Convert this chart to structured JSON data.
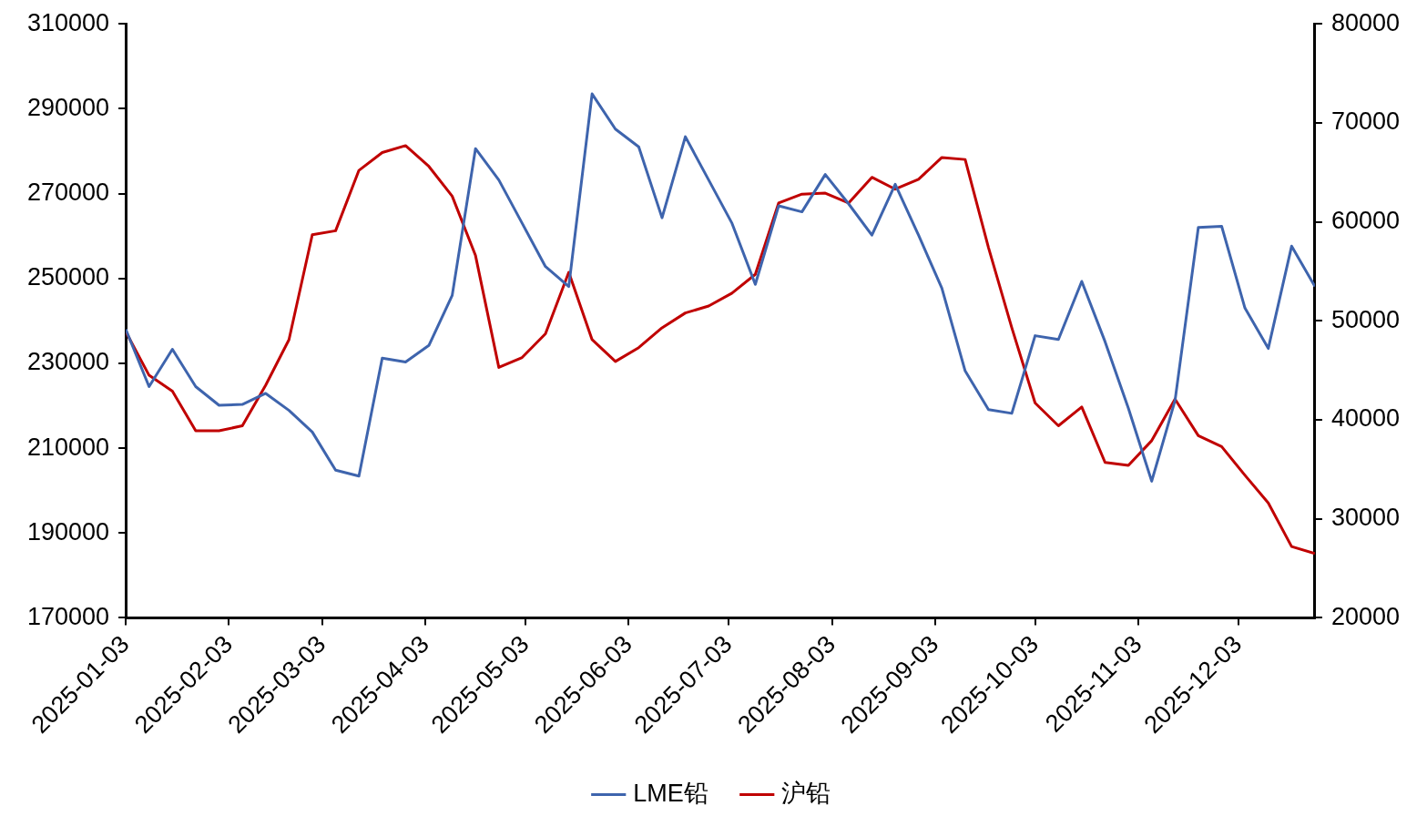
{
  "chart_data": {
    "type": "line",
    "x": [
      "2025-01-03",
      "2025-01-10",
      "2025-01-17",
      "2025-01-24",
      "2025-01-31",
      "2025-02-07",
      "2025-02-14",
      "2025-02-21",
      "2025-02-28",
      "2025-03-07",
      "2025-03-14",
      "2025-03-21",
      "2025-03-28",
      "2025-04-04",
      "2025-04-11",
      "2025-04-18",
      "2025-04-25",
      "2025-05-02",
      "2025-05-09",
      "2025-05-16",
      "2025-05-23",
      "2025-05-30",
      "2025-06-06",
      "2025-06-13",
      "2025-06-20",
      "2025-06-27",
      "2025-07-04",
      "2025-07-11",
      "2025-07-18",
      "2025-07-25",
      "2025-08-01",
      "2025-08-08",
      "2025-08-15",
      "2025-08-22",
      "2025-08-29",
      "2025-09-05",
      "2025-09-12",
      "2025-09-19",
      "2025-09-26",
      "2025-10-03",
      "2025-10-10",
      "2025-10-17",
      "2025-10-24",
      "2025-10-31",
      "2025-11-07",
      "2025-11-14",
      "2025-11-21",
      "2025-11-28",
      "2025-12-05",
      "2025-12-12",
      "2025-12-19",
      "2025-12-26"
    ],
    "series": [
      {
        "name": "LME铅",
        "color": "#3e64ad",
        "axis": "y",
        "values": [
          238000,
          224500,
          233300,
          224500,
          220100,
          220300,
          222900,
          218900,
          213800,
          204800,
          203400,
          231200,
          230300,
          234200,
          246000,
          280600,
          273200,
          263000,
          252800,
          248100,
          293500,
          285200,
          281000,
          264300,
          283400,
          273200,
          263000,
          248600,
          267100,
          265700,
          274500,
          267600,
          260200,
          272200,
          260200,
          247700,
          228200,
          219100,
          218200,
          236500,
          235600,
          249300,
          235100,
          219400,
          202200,
          221200,
          262000,
          262300,
          243000,
          233500,
          257600,
          248100
        ]
      },
      {
        "name": "沪铅",
        "color": "#c00000",
        "axis": "y2",
        "values": [
          48900,
          44500,
          42900,
          38900,
          38900,
          39400,
          43500,
          48100,
          58700,
          59100,
          65200,
          67000,
          67700,
          65600,
          62600,
          56600,
          45300,
          46300,
          48700,
          54900,
          48100,
          45900,
          47300,
          49300,
          50800,
          51500,
          52800,
          54700,
          61900,
          62800,
          62900,
          61900,
          64500,
          63300,
          64300,
          66500,
          66300,
          57400,
          49300,
          41700,
          39400,
          41300,
          35700,
          35400,
          37900,
          42100,
          38400,
          37300,
          34400,
          31600,
          27200,
          26500
        ]
      }
    ],
    "xlim": [
      "2025-01-03",
      "2025-12-26"
    ],
    "xticks": [
      "2025-01-03",
      "2025-02-03",
      "2025-03-03",
      "2025-04-03",
      "2025-05-03",
      "2025-06-03",
      "2025-07-03",
      "2025-08-03",
      "2025-09-03",
      "2025-10-03",
      "2025-11-03",
      "2025-12-03"
    ],
    "ylim": [
      170000,
      310000
    ],
    "yticks": [
      170000,
      190000,
      210000,
      230000,
      250000,
      270000,
      290000,
      310000
    ],
    "y2lim": [
      20000,
      80000
    ],
    "y2ticks": [
      20000,
      30000,
      40000,
      50000,
      60000,
      70000,
      80000
    ],
    "grid": false,
    "legend": "bottom",
    "marker": "none",
    "line_style": "solid"
  }
}
